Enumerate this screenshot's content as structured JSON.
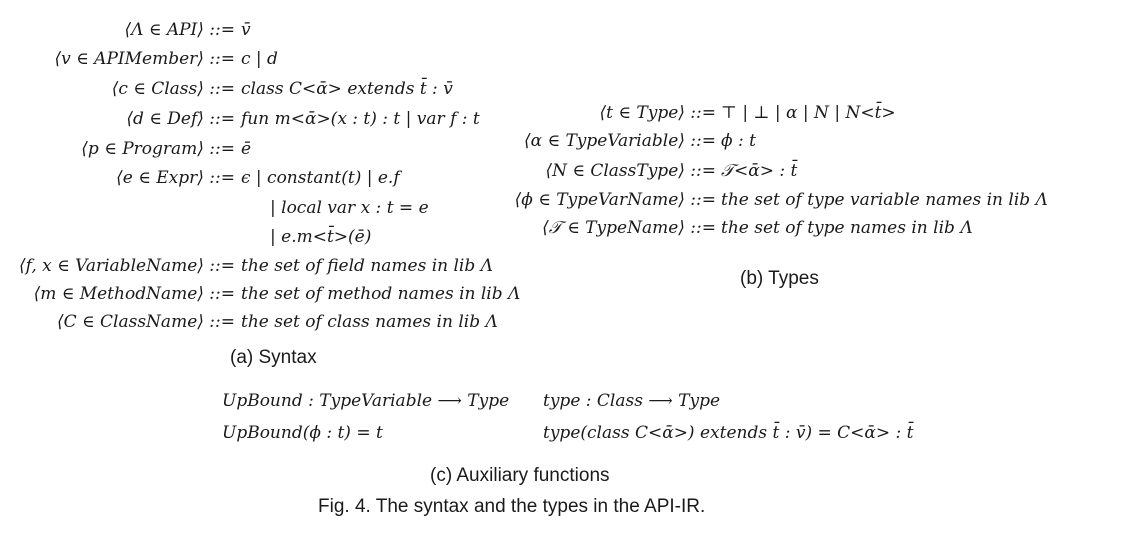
{
  "syntax": {
    "rows": [
      {
        "lhs": "⟨Λ ∈ API⟩ ::=",
        "rhs": "v̄"
      },
      {
        "lhs": "⟨v ∈ APIMember⟩ ::=",
        "rhs": "c  |  d"
      },
      {
        "lhs": "⟨c ∈ Class⟩ ::=",
        "rhs": "class C<ᾱ> extends t̄ : v̄"
      },
      {
        "lhs": "⟨d ∈ Def⟩ ::=",
        "rhs": "fun m<ᾱ>(x : t) : t  |  var f : t"
      },
      {
        "lhs": "⟨p ∈ Program⟩ ::=",
        "rhs": "ē"
      },
      {
        "lhs": "⟨e ∈ Expr⟩ ::=",
        "rhs": "ϵ  |  constant(t)  |  e.f"
      },
      {
        "lhs": "",
        "rhs": "|  local var x : t = e"
      },
      {
        "lhs": "",
        "rhs": "|  e.m<t̄>(ē)"
      },
      {
        "lhs": "⟨f, x ∈ VariableName⟩ ::=",
        "rhs": "the set of field names in lib Λ"
      },
      {
        "lhs": "⟨m ∈ MethodName⟩ ::=",
        "rhs": "the set of method names in lib Λ"
      },
      {
        "lhs": "⟨C ∈ ClassName⟩ ::=",
        "rhs": "the set of class names in lib Λ"
      }
    ],
    "caption": "(a) Syntax"
  },
  "types": {
    "rows": [
      {
        "lhs": "⟨t ∈ Type⟩ ::=",
        "rhs": "⊤  |  ⊥  |  α  |  N  |  N<t̄>"
      },
      {
        "lhs": "⟨α ∈ TypeVariable⟩ ::=",
        "rhs": "ϕ : t"
      },
      {
        "lhs": "⟨N ∈ ClassType⟩ ::=",
        "rhs": "𝒯<ᾱ> : t̄"
      },
      {
        "lhs": "⟨ϕ ∈ TypeVarName⟩ ::=",
        "rhs": "the set of type variable names in lib Λ"
      },
      {
        "lhs": "⟨𝒯 ∈ TypeName⟩ ::=",
        "rhs": "the set of type names in lib Λ"
      }
    ],
    "caption": "(b) Types"
  },
  "aux": {
    "left": [
      "UpBound : TypeVariable ⟶ Type",
      "UpBound(ϕ : t) = t"
    ],
    "right": [
      "type : Class ⟶ Type",
      "type(class C<ᾱ>) extends t̄ : v̄) = C<ᾱ> : t̄"
    ],
    "caption": "(c) Auxiliary functions"
  },
  "figure_caption": "Fig. 4.  The syntax and the types in the API-IR."
}
